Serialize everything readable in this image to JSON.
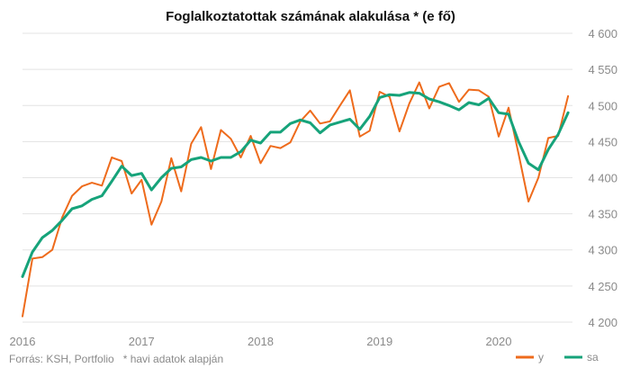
{
  "chart_data": {
    "type": "line",
    "title": "Foglalkoztatottak számának alakulása * (e fő)",
    "source": "Forrás: KSH, Portfolio   * havi adatok alapján",
    "xlabel": "",
    "ylabel": "",
    "ylim": [
      4190,
      4605
    ],
    "yticks": [
      4200,
      4250,
      4300,
      4350,
      4400,
      4450,
      4500,
      4550,
      4600
    ],
    "ytick_labels": [
      "4 200",
      "4 250",
      "4 300",
      "4 350",
      "4 400",
      "4 450",
      "4 500",
      "4 550",
      "4 600"
    ],
    "xlim": [
      2016.0,
      2020.62
    ],
    "xticks": [
      2016,
      2017,
      2018,
      2019,
      2020
    ],
    "xtick_labels": [
      "2016",
      "2017",
      "2018",
      "2019",
      "2020"
    ],
    "grid": true,
    "legend_position": "bottom-right",
    "series": [
      {
        "name": "y",
        "color": "#ee6b1c",
        "x": [
          2016.0,
          2016.0833,
          2016.1667,
          2016.25,
          2016.3333,
          2016.4167,
          2016.5,
          2016.5833,
          2016.6667,
          2016.75,
          2016.8333,
          2016.9167,
          2017.0,
          2017.0833,
          2017.1667,
          2017.25,
          2017.3333,
          2017.4167,
          2017.5,
          2017.5833,
          2017.6667,
          2017.75,
          2017.8333,
          2017.9167,
          2018.0,
          2018.0833,
          2018.1667,
          2018.25,
          2018.3333,
          2018.4167,
          2018.5,
          2018.5833,
          2018.6667,
          2018.75,
          2018.8333,
          2018.9167,
          2019.0,
          2019.0833,
          2019.1667,
          2019.25,
          2019.3333,
          2019.4167,
          2019.5,
          2019.5833,
          2019.6667,
          2019.75,
          2019.8333,
          2019.9167,
          2020.0,
          2020.0833,
          2020.1667,
          2020.25,
          2020.3333,
          2020.4167,
          2020.5,
          2020.5833
        ],
        "values": [
          4208,
          4288,
          4290,
          4300,
          4345,
          4375,
          4388,
          4393,
          4389,
          4428,
          4423,
          4378,
          4397,
          4335,
          4367,
          4427,
          4381,
          4447,
          4470,
          4412,
          4466,
          4454,
          4428,
          4458,
          4420,
          4444,
          4441,
          4449,
          4478,
          4493,
          4475,
          4478,
          4500,
          4521,
          4457,
          4465,
          4519,
          4512,
          4464,
          4503,
          4532,
          4496,
          4526,
          4531,
          4505,
          4522,
          4521,
          4512,
          4457,
          4497,
          4433,
          4367,
          4400,
          4455,
          4458,
          4513
        ]
      },
      {
        "name": "sa",
        "color": "#16a37a",
        "x": [
          2016.0,
          2016.0833,
          2016.1667,
          2016.25,
          2016.3333,
          2016.4167,
          2016.5,
          2016.5833,
          2016.6667,
          2016.75,
          2016.8333,
          2016.9167,
          2017.0,
          2017.0833,
          2017.1667,
          2017.25,
          2017.3333,
          2017.4167,
          2017.5,
          2017.5833,
          2017.6667,
          2017.75,
          2017.8333,
          2017.9167,
          2018.0,
          2018.0833,
          2018.1667,
          2018.25,
          2018.3333,
          2018.4167,
          2018.5,
          2018.5833,
          2018.6667,
          2018.75,
          2018.8333,
          2018.9167,
          2019.0,
          2019.0833,
          2019.1667,
          2019.25,
          2019.3333,
          2019.4167,
          2019.5,
          2019.5833,
          2019.6667,
          2019.75,
          2019.8333,
          2019.9167,
          2020.0,
          2020.0833,
          2020.1667,
          2020.25,
          2020.3333,
          2020.4167,
          2020.5,
          2020.5833
        ],
        "values": [
          4263,
          4297,
          4317,
          4327,
          4341,
          4357,
          4361,
          4370,
          4375,
          4395,
          4416,
          4403,
          4406,
          4383,
          4400,
          4413,
          4415,
          4425,
          4428,
          4423,
          4428,
          4428,
          4436,
          4452,
          4448,
          4463,
          4463,
          4475,
          4480,
          4476,
          4462,
          4473,
          4477,
          4481,
          4467,
          4485,
          4511,
          4515,
          4514,
          4518,
          4517,
          4509,
          4505,
          4500,
          4494,
          4504,
          4501,
          4510,
          4490,
          4488,
          4450,
          4420,
          4411,
          4439,
          4460,
          4490
        ]
      }
    ]
  }
}
